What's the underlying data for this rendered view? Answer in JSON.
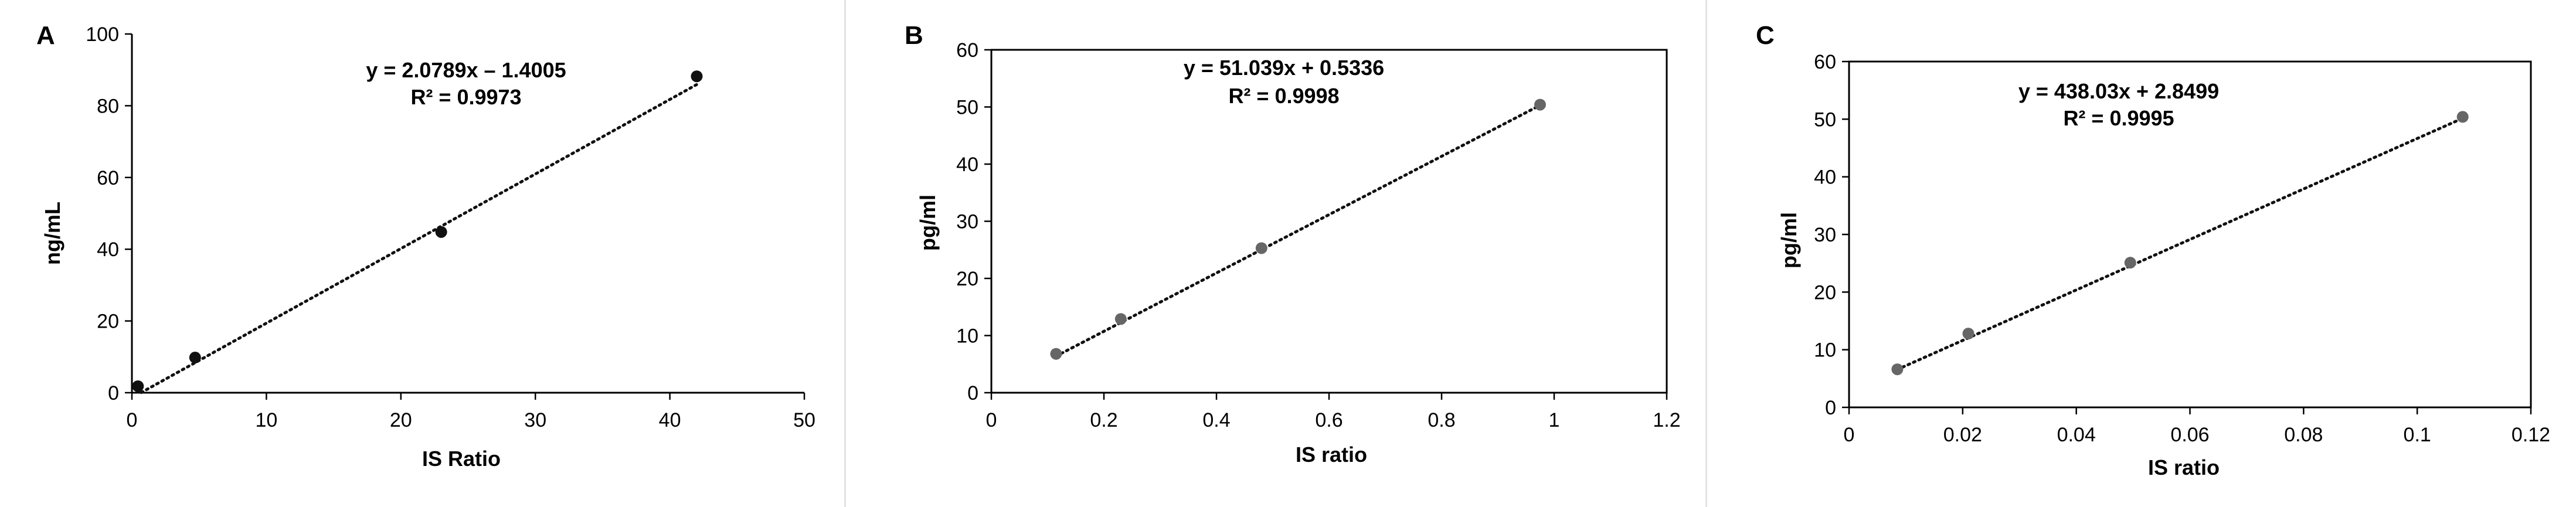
{
  "chart_data": [
    {
      "type": "scatter",
      "panel_label": "A",
      "xlabel": "IS Ratio",
      "ylabel": "ng/mL",
      "xlim": [
        0,
        50
      ],
      "ylim": [
        0,
        100
      ],
      "xticks": [
        0,
        10,
        20,
        30,
        40,
        50
      ],
      "yticks": [
        0,
        20,
        40,
        60,
        80,
        100
      ],
      "xtick_labels": [
        "0",
        "10",
        "20",
        "30",
        "40",
        "50"
      ],
      "ytick_labels": [
        "0",
        "20",
        "40",
        "60",
        "80",
        "100"
      ],
      "frame": "axes",
      "point_color": "#111111",
      "x": [
        0.45,
        4.7,
        23.0,
        42.0
      ],
      "y": [
        1.8,
        9.8,
        44.8,
        88.2
      ],
      "trendline": {
        "slope": 2.0789,
        "intercept": -1.4005,
        "x_range": [
          0.7,
          42.0
        ]
      },
      "equation": "y = 2.0789x – 1.4005",
      "r_squared": "R² = 0.9973"
    },
    {
      "type": "scatter",
      "panel_label": "B",
      "xlabel": "IS ratio",
      "ylabel": "pg/ml",
      "xlim": [
        0,
        1.2
      ],
      "ylim": [
        0,
        60
      ],
      "xticks": [
        0,
        0.2,
        0.4,
        0.6,
        0.8,
        1.0,
        1.2
      ],
      "yticks": [
        0,
        10,
        20,
        30,
        40,
        50,
        60
      ],
      "xtick_labels": [
        "0",
        "0.2",
        "0.4",
        "0.6",
        "0.8",
        "1",
        "1.2"
      ],
      "ytick_labels": [
        "0",
        "10",
        "20",
        "30",
        "40",
        "50",
        "60"
      ],
      "frame": "box",
      "point_color": "#666666",
      "x": [
        0.115,
        0.23,
        0.48,
        0.975
      ],
      "y": [
        6.8,
        12.9,
        25.3,
        50.4
      ],
      "trendline": {
        "slope": 51.039,
        "intercept": 0.5336,
        "x_range": [
          0.115,
          0.975
        ]
      },
      "equation": "y = 51.039x + 0.5336",
      "r_squared": "R² = 0.9998"
    },
    {
      "type": "scatter",
      "panel_label": "C",
      "xlabel": "IS ratio",
      "ylabel": "pg/ml",
      "xlim": [
        0,
        0.12
      ],
      "ylim": [
        0,
        60
      ],
      "xticks": [
        0,
        0.02,
        0.04,
        0.06,
        0.08,
        0.1,
        0.12
      ],
      "yticks": [
        0,
        10,
        20,
        30,
        40,
        50,
        60
      ],
      "xtick_labels": [
        "0",
        "0.02",
        "0.04",
        "0.06",
        "0.08",
        "0.1",
        "0.12"
      ],
      "ytick_labels": [
        "0",
        "10",
        "20",
        "30",
        "40",
        "50",
        "60"
      ],
      "frame": "box",
      "point_color": "#666666",
      "x": [
        0.0085,
        0.021,
        0.0495,
        0.108
      ],
      "y": [
        6.6,
        12.8,
        25.1,
        50.4
      ],
      "trendline": {
        "slope": 438.03,
        "intercept": 2.8499,
        "x_range": [
          0.0085,
          0.108
        ]
      },
      "equation": "y = 438.03x + 2.8499",
      "r_squared": "R² = 0.9995"
    }
  ]
}
